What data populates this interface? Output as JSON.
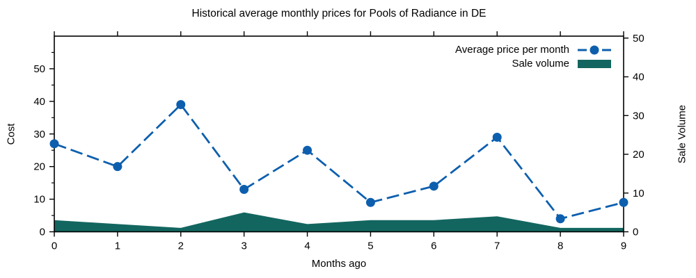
{
  "chart_data": {
    "type": "line+area",
    "title": "Historical average monthly prices for Pools of Radiance in DE",
    "xlabel": "Months ago",
    "ylabel_left": "Cost",
    "ylabel_right": "Sale Volume",
    "x": [
      0,
      1,
      2,
      3,
      4,
      5,
      6,
      7,
      8,
      9
    ],
    "x_ticks": [
      0,
      1,
      2,
      3,
      4,
      5,
      6,
      7,
      8,
      9
    ],
    "xlim": [
      0,
      9
    ],
    "left_ylim": [
      0,
      60
    ],
    "right_ylim": [
      0,
      50.5
    ],
    "left_ticks": [
      0,
      10,
      20,
      30,
      40,
      50
    ],
    "left_minor_ticks": [
      5,
      15,
      25,
      35,
      45,
      55
    ],
    "right_ticks": [
      0,
      10,
      20,
      30,
      40,
      50
    ],
    "grid": false,
    "legend_position": "top-right-inside",
    "series": [
      {
        "name": "Average price per month",
        "type": "line",
        "axis": "left",
        "line_style": "dashed",
        "marker": "circle",
        "color": "#0d5fae",
        "values": [
          27,
          20,
          39,
          13,
          25,
          9,
          14,
          29,
          4,
          9
        ]
      },
      {
        "name": "Sale volume",
        "type": "area",
        "axis": "right",
        "color": "#136660",
        "values": [
          3,
          2,
          1,
          5,
          2,
          3,
          3,
          4,
          1,
          1
        ]
      }
    ],
    "axis_color": "#000000",
    "background_color": "#ffffff"
  }
}
